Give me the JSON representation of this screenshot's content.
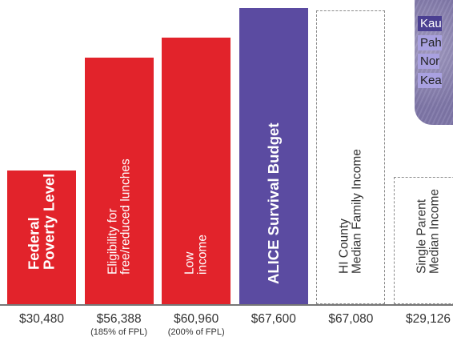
{
  "colors": {
    "red": "#e2232b",
    "purple": "#5b4ba1",
    "outline": "#8a8a8a"
  },
  "chart_data": {
    "type": "bar",
    "ylim": [
      0,
      68000
    ],
    "categories": [
      {
        "label": "Federal\nPoverty Level",
        "value": 30480,
        "value_label": "$30,480",
        "note": "",
        "style": "solid-red",
        "text": "big"
      },
      {
        "label": "Eligibility for\nfree/reduced lunches",
        "value": 56388,
        "value_label": "$56,388",
        "note": "(185% of FPL)",
        "style": "solid-red",
        "text": "small"
      },
      {
        "label": "Low\nincome",
        "value": 60960,
        "value_label": "$60,960",
        "note": "(200% of FPL)",
        "style": "solid-red",
        "text": "small"
      },
      {
        "label": "ALICE Survival Budget",
        "value": 67600,
        "value_label": "$67,600",
        "note": "",
        "style": "solid-purple",
        "text": "big"
      },
      {
        "label": "HI County\nMedian Family Income",
        "value": 67080,
        "value_label": "$67,080",
        "note": "",
        "style": "outline",
        "text": "dark"
      },
      {
        "label": "Single Parent\nMedian Income",
        "value": 29126,
        "value_label": "$29,126",
        "note": "",
        "style": "outline",
        "text": "dark"
      }
    ]
  },
  "map_inset": {
    "items": [
      {
        "label": "Kau",
        "selected": true
      },
      {
        "label": "Pah",
        "selected": false
      },
      {
        "label": "Nor",
        "selected": false
      },
      {
        "label": "Kea",
        "selected": false
      }
    ]
  }
}
